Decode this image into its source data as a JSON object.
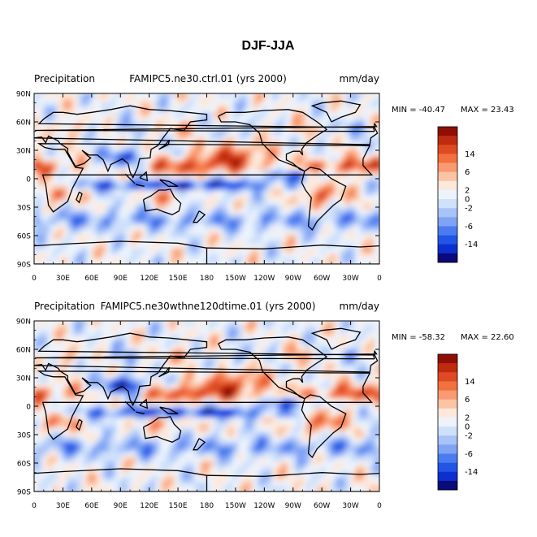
{
  "figure_title": "DJF-JJA",
  "colors": {
    "levels": [
      "#0a0a78",
      "#0c2fcf",
      "#2255e6",
      "#4a7bf0",
      "#7fa3f5",
      "#a9c3f8",
      "#cfe0fb",
      "#ecf3fd",
      "#fde8dc",
      "#fbc4a4",
      "#f99a70",
      "#f3713f",
      "#de4a22",
      "#bf2b0f",
      "#8f0f05"
    ],
    "land_outline": "#000000",
    "frame": "#000000"
  },
  "colorbar": {
    "labels": [
      "14",
      "6",
      "2",
      "0",
      "-2",
      "-6",
      "-14"
    ]
  },
  "chart_data": [
    {
      "type": "heatmap",
      "title_left": "Precipitation",
      "title_center": "FAMIPC5.ne30.ctrl.01 (yrs 2000)",
      "units": "mm/day",
      "min_label": "MIN = -40.47",
      "max_label": "MAX = 23.43",
      "min": -40.47,
      "max": 23.43,
      "xticks": [
        "0",
        "30E",
        "60E",
        "90E",
        "120E",
        "150E",
        "180",
        "150W",
        "120W",
        "90W",
        "60W",
        "30W",
        "0"
      ],
      "yticks": [
        "90N",
        "60N",
        "30N",
        "0",
        "30S",
        "60S",
        "90S"
      ],
      "contour_levels": [
        -14,
        -10,
        -6,
        -4,
        -2,
        -1,
        0,
        1,
        2,
        4,
        6,
        10,
        14
      ]
    },
    {
      "type": "heatmap",
      "title_left": "Precipitation",
      "title_center": "FAMIPC5.ne30wthne120dtime.01 (yrs 2000)",
      "units": "mm/day",
      "min_label": "MIN = -58.32",
      "max_label": "MAX = 22.60",
      "min": -58.32,
      "max": 22.6,
      "xticks": [
        "0",
        "30E",
        "60E",
        "90E",
        "120E",
        "150E",
        "180",
        "150W",
        "120W",
        "90W",
        "60W",
        "30W",
        "0"
      ],
      "yticks": [
        "90N",
        "60N",
        "30N",
        "0",
        "30S",
        "60S",
        "90S"
      ],
      "contour_levels": [
        -14,
        -10,
        -6,
        -4,
        -2,
        -1,
        0,
        1,
        2,
        4,
        6,
        10,
        14
      ]
    }
  ]
}
